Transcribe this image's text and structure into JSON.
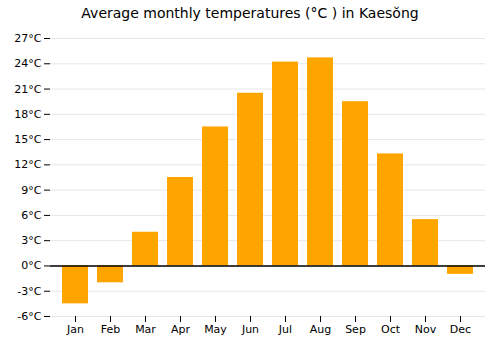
{
  "chart_data": {
    "type": "bar",
    "title": "Average monthly temperatures (°C ) in Kaesŏng",
    "categories": [
      "Jan",
      "Feb",
      "Mar",
      "Apr",
      "May",
      "Jun",
      "Jul",
      "Aug",
      "Sep",
      "Oct",
      "Nov",
      "Dec"
    ],
    "values": [
      -4.5,
      -2.0,
      4.0,
      10.5,
      16.5,
      20.5,
      24.2,
      24.7,
      19.5,
      13.3,
      5.5,
      -1.0
    ],
    "color": "#FFA500",
    "ylim": [
      -6,
      27
    ],
    "yticks": [
      {
        "value": -6,
        "label": "-6°C"
      },
      {
        "value": -3,
        "label": "-3°C"
      },
      {
        "value": 0,
        "label": "0°C"
      },
      {
        "value": 3,
        "label": "3°C"
      },
      {
        "value": 6,
        "label": "6°C"
      },
      {
        "value": 9,
        "label": "9°C"
      },
      {
        "value": 12,
        "label": "12°C"
      },
      {
        "value": 15,
        "label": "15°C"
      },
      {
        "value": 18,
        "label": "18°C"
      },
      {
        "value": 21,
        "label": "21°C"
      },
      {
        "value": 24,
        "label": "24°C"
      },
      {
        "value": 27,
        "label": "27°C"
      }
    ],
    "grid": true
  }
}
